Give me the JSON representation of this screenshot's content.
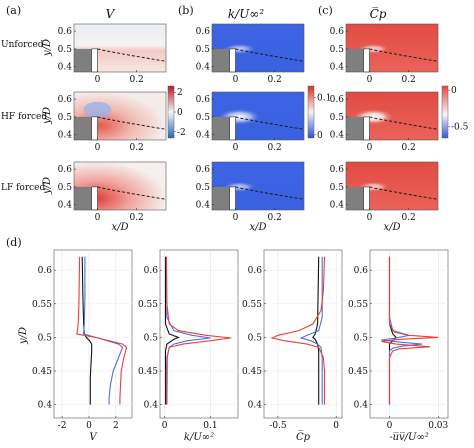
{
  "panels": {
    "a": "(a)",
    "b": "(b)",
    "c": "(c)",
    "d": "(d)"
  },
  "column_titles": [
    "V",
    "k/U∞²",
    "C̅p"
  ],
  "row_labels": [
    "Unforced",
    "HF forced",
    "LF forced"
  ],
  "colorbar_ticks": {
    "V": [
      "2",
      "0",
      "-2"
    ],
    "k": [
      "0.1",
      "0"
    ],
    "cp": [
      "0",
      "-0.5"
    ]
  },
  "colors": {
    "red": "#e8413a",
    "blue": "#4a6fe0",
    "black": "#111111",
    "gray": "#808080"
  },
  "chart_data": [
    {
      "type": "heatmap",
      "grid": "3x3",
      "rows": [
        "Unforced",
        "HF forced",
        "LF forced"
      ],
      "columns": [
        "V",
        "k/U∞²",
        "C̅p"
      ],
      "xlabel": "x/D",
      "ylabel": "y/D",
      "xticks": [
        "0",
        "0.2"
      ],
      "yticks": [
        "0.6",
        "0.5",
        "0.4"
      ],
      "xlim": [
        -0.12,
        0.35
      ],
      "ylim": [
        0.37,
        0.64
      ],
      "colorbar_ranges": {
        "V": [
          -3,
          3
        ],
        "k": [
          0,
          0.14
        ],
        "cp": [
          -0.6,
          0.1
        ]
      },
      "dashed_curve": "shear-layer trajectory y/D from 0.5 at x/D=0 to 0.43 at x/D=0.35"
    },
    {
      "type": "line",
      "ylabel": "y/D",
      "ylim": [
        0.38,
        0.63
      ],
      "yticks": [
        "0.6",
        "0.55",
        "0.5",
        "0.45",
        "0.4"
      ],
      "series_colors": [
        "black",
        "blue",
        "red"
      ],
      "subplots": [
        {
          "xlabel": "V",
          "xlim": [
            -2.6,
            3.2
          ],
          "xticks": [
            "-2",
            "0",
            "2"
          ],
          "xtick_values": [
            -2,
            0,
            2
          ],
          "series": [
            {
              "y": [
                0.62,
                0.56,
                0.52,
                0.505,
                0.5,
                0.495,
                0.49,
                0.48,
                0.46,
                0.44,
                0.42,
                0.4
              ],
              "x": [
                -0.5,
                -0.45,
                -0.4,
                -0.35,
                -0.2,
                0.05,
                0.2,
                0.2,
                0.15,
                0.1,
                0.1,
                0.1
              ]
            },
            {
              "y": [
                0.62,
                0.56,
                0.52,
                0.505,
                0.5,
                0.49,
                0.485,
                0.47,
                0.45,
                0.43,
                0.41,
                0.4
              ],
              "x": [
                -0.3,
                -0.3,
                -0.35,
                -0.4,
                0.5,
                2.2,
                2.5,
                2.2,
                1.8,
                1.6,
                1.5,
                1.5
              ]
            },
            {
              "y": [
                0.62,
                0.55,
                0.52,
                0.505,
                0.5,
                0.49,
                0.485,
                0.47,
                0.45,
                0.43,
                0.41,
                0.4
              ],
              "x": [
                -0.7,
                -0.75,
                -0.8,
                -0.9,
                0.5,
                2.5,
                2.8,
                2.6,
                2.4,
                2.35,
                2.3,
                2.3
              ]
            }
          ]
        },
        {
          "xlabel": "k/U∞²",
          "xlim": [
            -0.01,
            0.16
          ],
          "xticks": [
            "0",
            "0.1"
          ],
          "xtick_values": [
            0,
            0.1
          ],
          "series": [
            {
              "y": [
                0.62,
                0.52,
                0.505,
                0.5,
                0.497,
                0.49,
                0.48,
                0.4
              ],
              "x": [
                0.002,
                0.002,
                0.01,
                0.03,
                0.02,
                0.005,
                0.002,
                0.002
              ]
            },
            {
              "y": [
                0.62,
                0.53,
                0.51,
                0.503,
                0.499,
                0.495,
                0.49,
                0.485,
                0.47,
                0.4
              ],
              "x": [
                0.004,
                0.005,
                0.02,
                0.06,
                0.1,
                0.05,
                0.02,
                0.01,
                0.006,
                0.005
              ]
            },
            {
              "y": [
                0.62,
                0.55,
                0.52,
                0.51,
                0.503,
                0.499,
                0.495,
                0.49,
                0.485,
                0.47,
                0.45,
                0.4
              ],
              "x": [
                0.004,
                0.005,
                0.01,
                0.03,
                0.09,
                0.145,
                0.1,
                0.04,
                0.01,
                0.005,
                0.004,
                0.004
              ]
            }
          ]
        },
        {
          "xlabel": "C̅p",
          "xlim": [
            -0.62,
            0.05
          ],
          "xticks": [
            "-0.5",
            "0"
          ],
          "xtick_values": [
            -0.5,
            0
          ],
          "series": [
            {
              "y": [
                0.62,
                0.52,
                0.505,
                0.5,
                0.497,
                0.49,
                0.48,
                0.4
              ],
              "x": [
                -0.15,
                -0.16,
                -0.18,
                -0.2,
                -0.18,
                -0.16,
                -0.15,
                -0.15
              ]
            },
            {
              "y": [
                0.62,
                0.53,
                0.51,
                0.503,
                0.499,
                0.495,
                0.49,
                0.485,
                0.47,
                0.4
              ],
              "x": [
                -0.12,
                -0.12,
                -0.15,
                -0.25,
                -0.3,
                -0.22,
                -0.16,
                -0.13,
                -0.12,
                -0.12
              ]
            },
            {
              "y": [
                0.62,
                0.57,
                0.54,
                0.52,
                0.51,
                0.503,
                0.499,
                0.495,
                0.49,
                0.485,
                0.47,
                0.45,
                0.4
              ],
              "x": [
                -0.1,
                -0.11,
                -0.13,
                -0.2,
                -0.32,
                -0.5,
                -0.55,
                -0.45,
                -0.25,
                -0.15,
                -0.11,
                -0.1,
                -0.1
              ]
            }
          ]
        },
        {
          "xlabel": "-u̅v̅/U∞²",
          "xlim": [
            -0.012,
            0.036
          ],
          "xticks": [
            "0",
            "0.03"
          ],
          "xtick_values": [
            0,
            0.03
          ],
          "series": [
            {
              "y": [
                0.62,
                0.52,
                0.505,
                0.5,
                0.495,
                0.49,
                0.48,
                0.4
              ],
              "x": [
                0,
                0,
                0.002,
                0.004,
                0.002,
                0,
                0,
                0
              ]
            },
            {
              "y": [
                0.62,
                0.53,
                0.51,
                0.503,
                0.499,
                0.496,
                0.493,
                0.49,
                0.487,
                0.484,
                0.48,
                0.47,
                0.4
              ],
              "x": [
                0,
                0,
                0.002,
                0.012,
                0.004,
                -0.005,
                0.006,
                0.02,
                0.008,
                0.002,
                0.0,
                0,
                0
              ]
            },
            {
              "y": [
                0.62,
                0.52,
                0.508,
                0.503,
                0.5,
                0.497,
                0.494,
                0.49,
                0.486,
                0.483,
                0.48,
                0.47,
                0.4
              ],
              "x": [
                0,
                0,
                0.003,
                0.012,
                0.03,
                0.005,
                -0.005,
                0.004,
                0.025,
                0.006,
                0.002,
                0,
                0
              ]
            }
          ]
        }
      ]
    }
  ]
}
